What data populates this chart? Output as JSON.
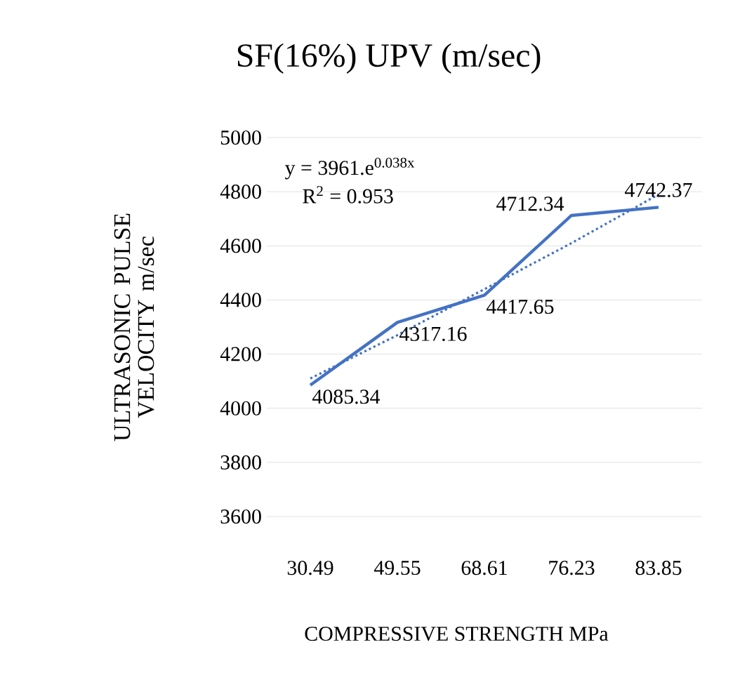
{
  "chart_data": {
    "type": "line",
    "title": "SF(16%) UPV (m/sec)",
    "xlabel": "COMPRESSIVE STRENGTH MPa",
    "ylabel": "ULTRASONIC PULSE VELOCITY m/sec",
    "categories": [
      "30.49",
      "49.55",
      "68.61",
      "76.23",
      "83.85"
    ],
    "series": [
      {
        "color": "#4472c4",
        "values": [
          4085.34,
          4317.16,
          4417.65,
          4712.34,
          4742.37
        ],
        "value_labels": [
          "4085.34",
          "4317.16",
          "4417.65",
          "4712.34",
          "4742.37"
        ],
        "line_style": "solid"
      },
      {
        "color": "#4472c4",
        "values": [
          4110,
          4270,
          4440,
          4610,
          4790
        ],
        "line_style": "dotted"
      }
    ],
    "ylim": [
      3600,
      5000
    ],
    "yticks": [
      3600,
      3800,
      4000,
      4200,
      4400,
      4600,
      4800,
      5000
    ],
    "grid": "y",
    "annotations": [
      "y = 3961.e$^{0.038x}$",
      "R$^{2}$ = 0.953"
    ]
  }
}
